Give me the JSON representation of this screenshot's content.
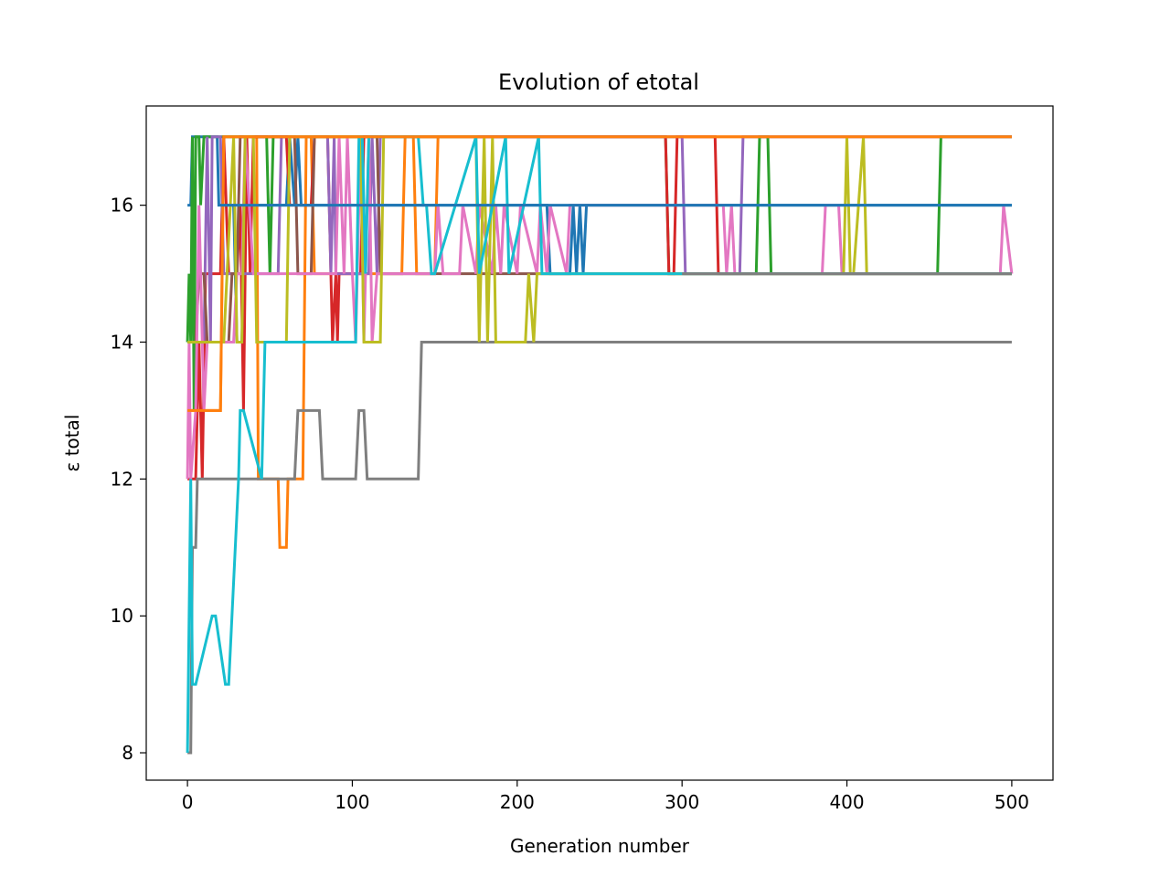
{
  "chart_data": {
    "type": "line",
    "title": "Evolution of etotal",
    "xlabel": "Generation number",
    "ylabel": "ε total",
    "xlim": [
      -25,
      525
    ],
    "ylim": [
      7.6,
      17.45
    ],
    "xticks": [
      0,
      100,
      200,
      300,
      400,
      500
    ],
    "yticks": [
      8,
      10,
      12,
      14,
      16
    ],
    "grid": false,
    "legend": "none",
    "series": [
      {
        "color": "#1f77b4",
        "x": [
          0,
          2,
          3,
          18,
          19,
          28,
          30,
          33,
          35,
          60,
          62,
          65,
          67,
          69,
          71,
          218,
          220,
          232,
          234,
          236,
          238,
          240,
          242,
          500
        ],
        "y": [
          16,
          16,
          17,
          17,
          16,
          16,
          14,
          14,
          16,
          16,
          17,
          16,
          17,
          16,
          16,
          16,
          15,
          15,
          16,
          15,
          16,
          15,
          16,
          16
        ]
      },
      {
        "color": "#ff7f0e",
        "x": [
          0,
          20,
          22,
          42,
          43,
          55,
          56,
          60,
          61,
          70,
          72,
          75,
          77,
          130,
          132,
          137,
          139,
          150,
          152,
          500
        ],
        "y": [
          13,
          13,
          17,
          17,
          12,
          12,
          11,
          11,
          12,
          12,
          17,
          17,
          15,
          15,
          17,
          17,
          15,
          15,
          17,
          17
        ]
      },
      {
        "color": "#2ca02c",
        "x": [
          0,
          1,
          2,
          3,
          4,
          5,
          7,
          8,
          10,
          48,
          50,
          52,
          56,
          290,
          292,
          345,
          347,
          352,
          354,
          455,
          457,
          460,
          500
        ],
        "y": [
          14,
          15,
          14,
          17,
          13,
          17,
          17,
          16,
          17,
          17,
          15,
          17,
          17,
          17,
          15,
          15,
          17,
          17,
          15,
          15,
          17,
          17,
          17
        ]
      },
      {
        "color": "#d62728",
        "x": [
          0,
          5,
          7,
          9,
          11,
          20,
          22,
          25,
          30,
          32,
          34,
          36,
          38,
          40,
          45,
          60,
          62,
          75,
          77,
          85,
          87,
          88,
          90,
          91,
          92,
          93,
          105,
          107,
          290,
          292,
          295,
          297,
          320,
          322,
          500
        ],
        "y": [
          12,
          12,
          14,
          12,
          15,
          15,
          17,
          15,
          15,
          16,
          13,
          17,
          15,
          17,
          17,
          17,
          16,
          16,
          17,
          17,
          15,
          14,
          15,
          14,
          15,
          15,
          15,
          17,
          17,
          15,
          15,
          17,
          17,
          15,
          15
        ]
      },
      {
        "color": "#9467bd",
        "x": [
          0,
          10,
          12,
          14,
          15,
          20,
          22,
          55,
          57,
          85,
          87,
          89,
          90,
          110,
          112,
          115,
          117,
          300,
          302,
          335,
          337,
          500
        ],
        "y": [
          14,
          14,
          17,
          14,
          17,
          17,
          15,
          15,
          17,
          17,
          15,
          17,
          15,
          15,
          17,
          15,
          17,
          17,
          15,
          15,
          17,
          17
        ]
      },
      {
        "color": "#8c564b",
        "x": [
          0,
          5,
          7,
          10,
          12,
          25,
          27,
          30,
          32,
          65,
          67,
          75,
          77,
          115,
          117,
          500
        ],
        "y": [
          14,
          14,
          15,
          15,
          14,
          14,
          15,
          15,
          17,
          17,
          15,
          15,
          17,
          17,
          15,
          15
        ]
      },
      {
        "color": "#e377c2",
        "x": [
          0,
          1,
          2,
          5,
          7,
          10,
          12,
          28,
          30,
          33,
          35,
          40,
          42,
          90,
          92,
          95,
          97,
          100,
          102,
          105,
          107,
          110,
          112,
          115,
          150,
          152,
          155,
          165,
          167,
          175,
          177,
          185,
          187,
          190,
          192,
          200,
          202,
          212,
          214,
          218,
          220,
          230,
          232,
          325,
          327,
          330,
          332,
          385,
          387,
          395,
          397,
          493,
          495,
          500
        ],
        "y": [
          12,
          14,
          12,
          13,
          16,
          13,
          14,
          14,
          15,
          15,
          17,
          15,
          15,
          15,
          17,
          15,
          17,
          15,
          14,
          17,
          14,
          17,
          14,
          15,
          15,
          16,
          15,
          15,
          16,
          15,
          16,
          15,
          16,
          15,
          16,
          15,
          16,
          15,
          16,
          15,
          16,
          15,
          16,
          16,
          15,
          16,
          15,
          15,
          16,
          16,
          15,
          15,
          16,
          15
        ]
      },
      {
        "color": "#7f7f7f",
        "x": [
          0,
          2,
          3,
          5,
          6,
          8,
          10,
          45,
          47,
          65,
          67,
          80,
          82,
          102,
          104,
          107,
          109,
          140,
          142,
          500
        ],
        "y": [
          8,
          8,
          11,
          11,
          12,
          12,
          12,
          12,
          12,
          12,
          13,
          13,
          12,
          12,
          13,
          13,
          12,
          12,
          14,
          14
        ]
      },
      {
        "color": "#bcbd22",
        "x": [
          0,
          22,
          24,
          28,
          30,
          33,
          35,
          40,
          42,
          60,
          62,
          105,
          107,
          117,
          119,
          175,
          177,
          180,
          182,
          185,
          187,
          205,
          207,
          210,
          212,
          398,
          400,
          402,
          404,
          410,
          412,
          500
        ],
        "y": [
          14,
          14,
          15,
          17,
          14,
          14,
          17,
          17,
          14,
          14,
          17,
          17,
          14,
          14,
          17,
          17,
          14,
          17,
          14,
          17,
          14,
          14,
          15,
          14,
          15,
          15,
          17,
          15,
          15,
          17,
          15,
          15
        ]
      },
      {
        "color": "#17becf",
        "x": [
          0,
          2,
          3,
          5,
          15,
          17,
          23,
          25,
          31,
          32,
          33,
          34,
          45,
          47,
          50,
          52,
          102,
          104,
          106,
          108,
          110,
          140,
          143,
          145,
          148,
          150,
          175,
          177,
          193,
          195,
          213,
          215,
          500
        ],
        "y": [
          8,
          12,
          9,
          9,
          10,
          10,
          9,
          9,
          12,
          13,
          13,
          13,
          12,
          14,
          14,
          14,
          14,
          17,
          17,
          15,
          17,
          17,
          16,
          16,
          15,
          15,
          17,
          15,
          17,
          15,
          17,
          15,
          15
        ]
      },
      {
        "color": "#ff7f0e",
        "x": [
          0,
          20,
          22,
          80,
          82,
          500
        ],
        "y": [
          13,
          13,
          17,
          17,
          17,
          17
        ]
      },
      {
        "color": "#1f77b4",
        "x": [
          20,
          60,
          62,
          100,
          102,
          500
        ],
        "y": [
          16,
          16,
          16,
          16,
          16,
          16
        ]
      },
      {
        "color": "#7f7f7f",
        "x": [
          300,
          500
        ],
        "y": [
          15,
          15
        ]
      }
    ]
  }
}
